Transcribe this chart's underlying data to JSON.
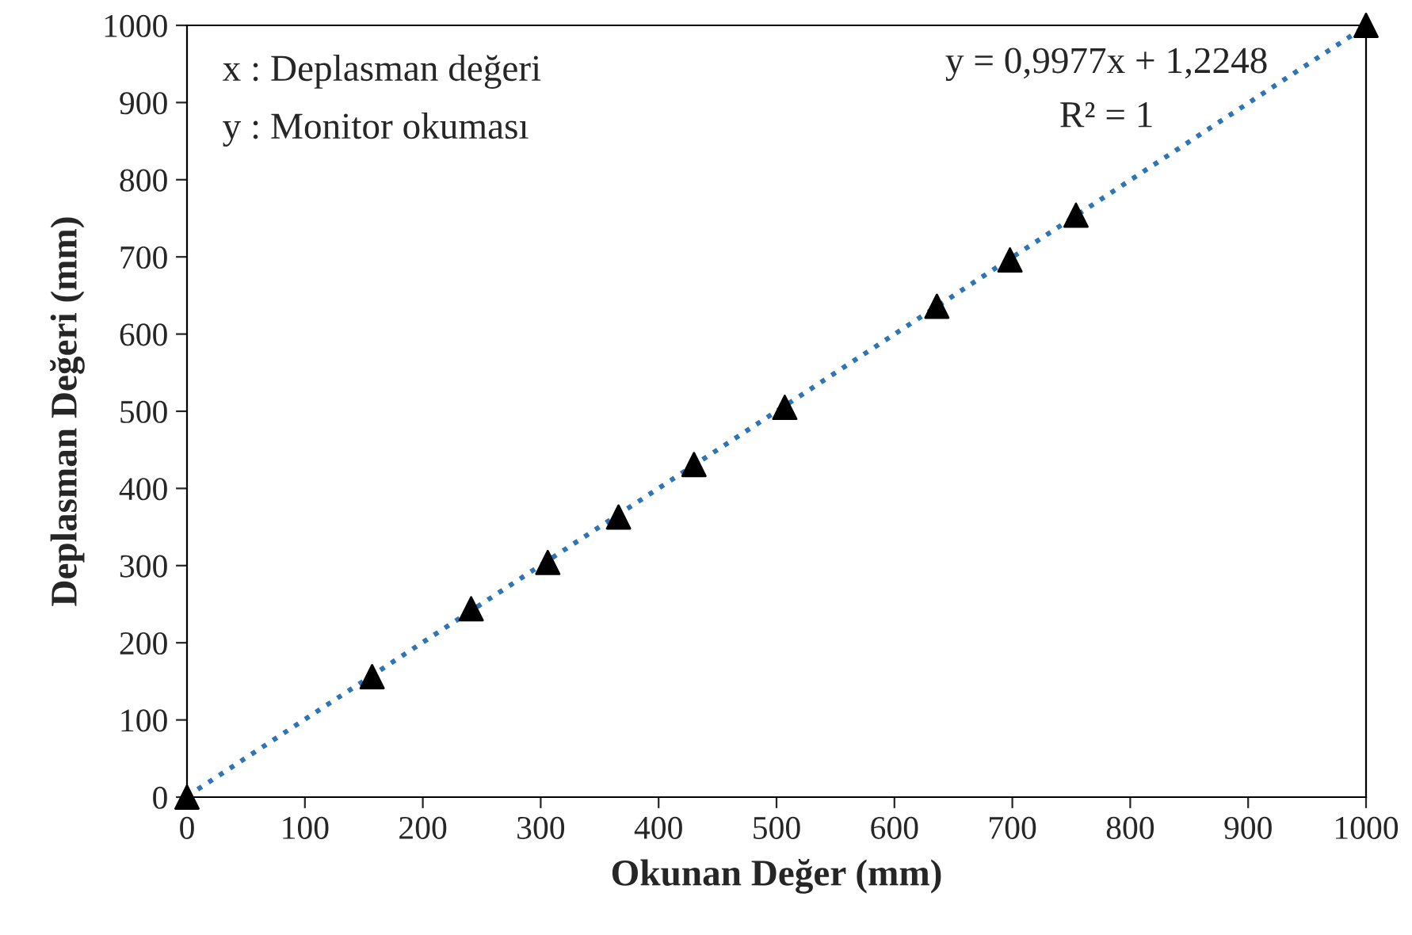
{
  "chart_data": {
    "type": "scatter",
    "xlabel": "Okunan Değer (mm)",
    "ylabel": "Deplasman Değeri (mm)",
    "xlim": [
      0,
      1000
    ],
    "ylim": [
      0,
      1000
    ],
    "xticks": [
      0,
      100,
      200,
      300,
      400,
      500,
      600,
      700,
      800,
      900,
      1000
    ],
    "yticks": [
      0,
      100,
      200,
      300,
      400,
      500,
      600,
      700,
      800,
      900,
      1000
    ],
    "marker": "triangle",
    "grid": false,
    "legend": false,
    "annotations": [
      "x : Deplasman değeri",
      "y : Monitor okuması",
      "y = 0,9977x + 1,2248",
      "R² = 1"
    ],
    "series": [
      {
        "color": "#000000",
        "x": [
          0,
          157,
          241,
          306,
          366,
          430,
          507,
          636,
          698,
          754,
          1000
        ],
        "values": [
          0,
          156,
          244,
          304,
          363,
          431,
          505,
          636,
          696,
          754,
          1000
        ]
      },
      {
        "type": "line",
        "color": "#2e75b6",
        "line_style": "dotted",
        "marker": "none",
        "x": [
          0,
          1000
        ],
        "values": [
          1,
          999
        ]
      }
    ]
  }
}
